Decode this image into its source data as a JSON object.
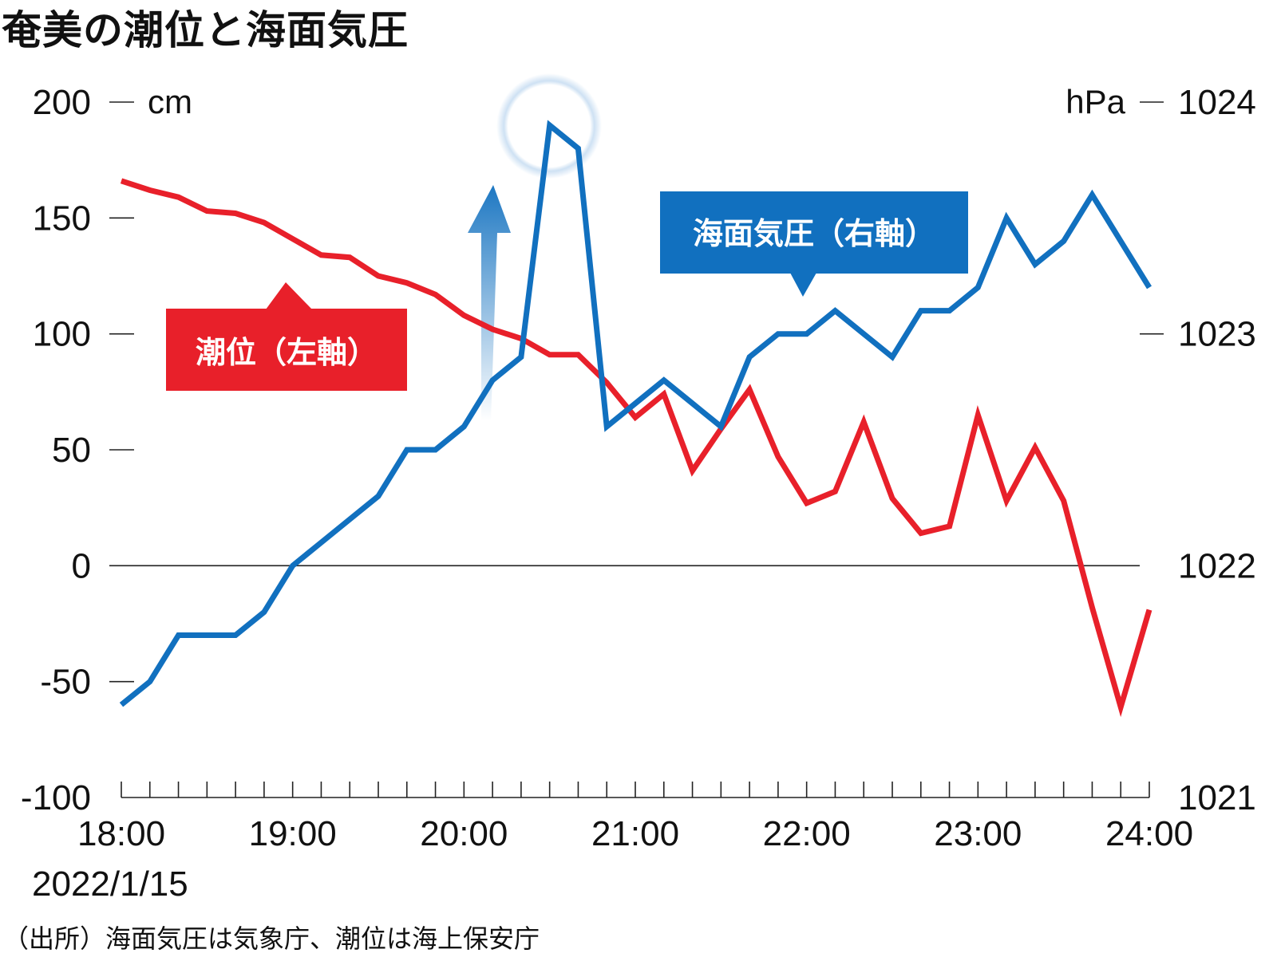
{
  "title": "奄美の潮位と海面気圧",
  "source_note": "（出所）海面気圧は気象庁、潮位は海上保安庁",
  "chart_data": {
    "type": "line",
    "title": "奄美の潮位と海面気圧",
    "date_label": "2022/1/15",
    "x_ticks": [
      "18:00",
      "19:00",
      "20:00",
      "21:00",
      "22:00",
      "23:00",
      "24:00"
    ],
    "x_minutes_step": 10,
    "x_range": [
      "18:00",
      "24:00"
    ],
    "left_axis": {
      "unit": "cm",
      "range": [
        -100,
        200
      ],
      "ticks": [
        200,
        150,
        100,
        50,
        0,
        -50,
        -100
      ]
    },
    "right_axis": {
      "unit": "hPa",
      "range": [
        1021,
        1024
      ],
      "ticks": [
        1024,
        1023,
        1022,
        1021
      ]
    },
    "grid": "zero line only",
    "series": [
      {
        "name": "潮位（左軸）",
        "axis": "left",
        "color": "#e8202a",
        "x": [
          "18:00",
          "18:10",
          "18:20",
          "18:30",
          "18:40",
          "18:50",
          "19:00",
          "19:10",
          "19:20",
          "19:30",
          "19:40",
          "19:50",
          "20:00",
          "20:10",
          "20:20",
          "20:30",
          "20:40",
          "20:50",
          "21:00",
          "21:10",
          "21:20",
          "21:30",
          "21:40",
          "21:50",
          "22:00",
          "22:10",
          "22:20",
          "22:30",
          "22:40",
          "22:50",
          "23:00",
          "23:10",
          "23:20",
          "23:30",
          "23:40",
          "23:50",
          "24:00"
        ],
        "values": [
          166,
          162,
          159,
          153,
          152,
          148,
          141,
          134,
          133,
          125,
          122,
          117,
          108,
          102,
          98,
          91,
          91,
          79,
          64,
          74,
          41,
          59,
          76,
          47,
          27,
          32,
          62,
          29,
          14,
          17,
          65,
          28,
          51,
          28,
          -18,
          -61,
          -19
        ]
      },
      {
        "name": "海面気圧（右軸）",
        "axis": "right",
        "color": "#1170bf",
        "x": [
          "18:00",
          "18:10",
          "18:20",
          "18:30",
          "18:40",
          "18:50",
          "19:00",
          "19:10",
          "19:20",
          "19:30",
          "19:40",
          "19:50",
          "20:00",
          "20:10",
          "20:20",
          "20:30",
          "20:40",
          "20:50",
          "21:00",
          "21:10",
          "21:20",
          "21:30",
          "21:40",
          "21:50",
          "22:00",
          "22:10",
          "22:20",
          "22:30",
          "22:40",
          "22:50",
          "23:00",
          "23:10",
          "23:20",
          "23:30",
          "23:40",
          "23:50",
          "24:00"
        ],
        "values": [
          1021.4,
          1021.5,
          1021.7,
          1021.7,
          1021.7,
          1021.8,
          1022.0,
          1022.1,
          1022.2,
          1022.3,
          1022.5,
          1022.5,
          1022.6,
          1022.8,
          1022.9,
          1023.9,
          1023.8,
          1022.6,
          1022.7,
          1022.8,
          1022.7,
          1022.6,
          1022.9,
          1023.0,
          1023.0,
          1023.1,
          1023.0,
          1022.9,
          1023.1,
          1023.1,
          1023.2,
          1023.5,
          1023.3,
          1023.4,
          1023.6,
          1023.4,
          1023.2
        ]
      }
    ],
    "annotations": [
      "highlight circle at 20:30 pressure peak",
      "upward arrow"
    ]
  }
}
